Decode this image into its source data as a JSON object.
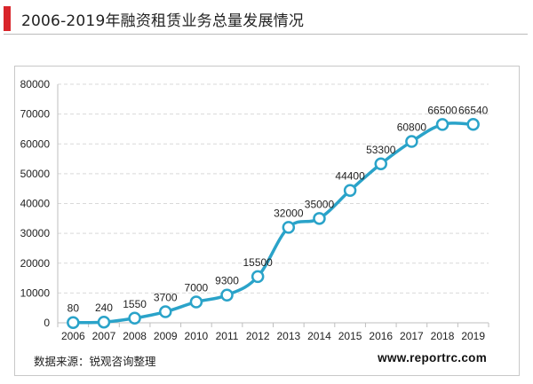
{
  "header": {
    "title": "2006-2019年融资租赁业务总量发展情况"
  },
  "footer": {
    "source": "数据来源：锐观咨询整理",
    "url": "www.reportrc.com"
  },
  "colors": {
    "accent": "#d9252b",
    "series_line": "#2aa3c9",
    "marker_fill": "#ffffff",
    "gridline": "#d9d9d9"
  },
  "chart_data": {
    "type": "line",
    "title": "2006-2019年融资租赁业务总量发展情况",
    "xlabel": "",
    "ylabel": "",
    "categories": [
      "2006",
      "2007",
      "2008",
      "2009",
      "2010",
      "2011",
      "2012",
      "2013",
      "2014",
      "2015",
      "2016",
      "2017",
      "2018",
      "2019"
    ],
    "series": [
      {
        "values": [
          80,
          240,
          1550,
          3700,
          7000,
          9300,
          15500,
          32000,
          35000,
          44400,
          53300,
          60800,
          66500,
          66540
        ],
        "labels": [
          "80",
          "240",
          "1550",
          "3700",
          "7000",
          "9300",
          "15500",
          "32000",
          "35000",
          "44400",
          "53300",
          "60800",
          "66500",
          "66540"
        ]
      }
    ],
    "ylim": [
      0,
      80000
    ],
    "yticks": [
      0,
      10000,
      20000,
      30000,
      40000,
      50000,
      60000,
      70000,
      80000
    ],
    "ytick_labels": [
      "0",
      "10000",
      "20000",
      "30000",
      "40000",
      "50000",
      "60000",
      "70000",
      "80000"
    ],
    "grid": true,
    "smooth": true,
    "markers": "circle"
  }
}
